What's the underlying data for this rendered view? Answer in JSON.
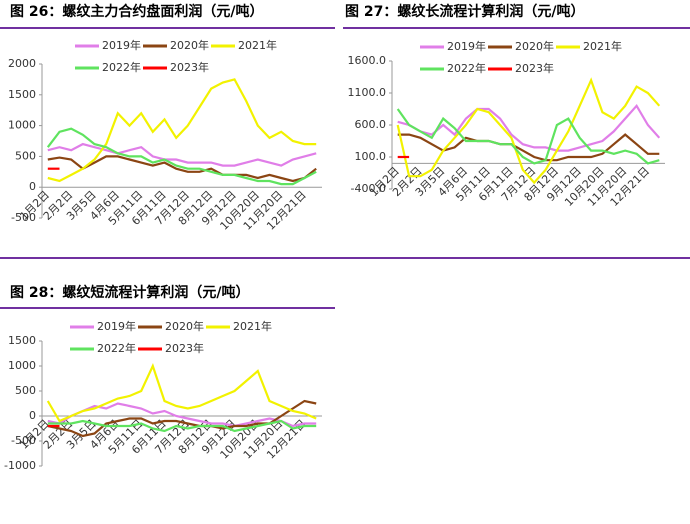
{
  "chart_data": [
    {
      "type": "line",
      "title": "图 26：螺纹主力合约盘面利润（元/吨）",
      "categories": [
        "1月2日",
        null,
        "2月2日",
        null,
        "3月5日",
        null,
        "4月6日",
        null,
        "5月11日",
        null,
        "6月11日",
        null,
        "7月12日",
        null,
        "8月12日",
        null,
        "9月12日",
        null,
        "10月20日",
        null,
        "11月20日",
        null,
        "12月21日",
        null
      ],
      "ylim": [
        -500,
        2000
      ],
      "yticks": [
        -500,
        0,
        500,
        1000,
        1500,
        2000
      ],
      "series": [
        {
          "name": "2019年",
          "color": "#e07ee8",
          "values": [
            600,
            650,
            600,
            700,
            650,
            600,
            550,
            600,
            650,
            500,
            450,
            450,
            400,
            400,
            400,
            350,
            350,
            400,
            450,
            400,
            350,
            450,
            500,
            550
          ]
        },
        {
          "name": "2020年",
          "color": "#8b4513",
          "values": [
            450,
            480,
            450,
            300,
            400,
            500,
            500,
            450,
            400,
            350,
            400,
            300,
            250,
            250,
            300,
            200,
            200,
            200,
            150,
            200,
            150,
            100,
            150,
            300
          ]
        },
        {
          "name": "2021年",
          "color": "#f2f200",
          "values": [
            150,
            100,
            200,
            300,
            450,
            700,
            1200,
            1000,
            1200,
            900,
            1100,
            800,
            1000,
            1300,
            1600,
            1700,
            1750,
            1400,
            1000,
            800,
            900,
            750,
            700,
            700
          ]
        },
        {
          "name": "2022年",
          "color": "#5fe35f",
          "values": [
            650,
            900,
            950,
            850,
            700,
            650,
            550,
            500,
            500,
            400,
            450,
            350,
            300,
            300,
            250,
            200,
            200,
            150,
            100,
            100,
            50,
            50,
            150,
            250
          ]
        },
        {
          "name": "2023年",
          "color": "#ff0000",
          "values": [
            300,
            300,
            null,
            null,
            null,
            null,
            null,
            null,
            null,
            null,
            null,
            null,
            null,
            null,
            null,
            null,
            null,
            null,
            null,
            null,
            null,
            null,
            null,
            null
          ]
        }
      ]
    },
    {
      "type": "line",
      "title": "图 27：螺纹长流程计算利润（元/吨）",
      "categories": [
        "1月2日",
        null,
        "2月2日",
        null,
        "3月5日",
        null,
        "4月6日",
        null,
        "5月11日",
        null,
        "6月11日",
        null,
        "7月12日",
        null,
        "8月12日",
        null,
        "9月12日",
        null,
        "10月20日",
        null,
        "11月20日",
        null,
        "12月21日",
        null
      ],
      "ylim": [
        -400,
        1600
      ],
      "yticks": [
        {
          "value": -400,
          "label": "-400.0"
        },
        {
          "value": 100,
          "label": "100.0"
        },
        {
          "value": 600,
          "label": "600.0"
        },
        {
          "value": 1100,
          "label": "1100.0"
        },
        {
          "value": 1600,
          "label": "1600.0"
        }
      ],
      "series": [
        {
          "name": "2019年",
          "color": "#e07ee8",
          "values": [
            650,
            600,
            500,
            450,
            600,
            450,
            700,
            850,
            850,
            700,
            450,
            300,
            250,
            250,
            200,
            200,
            250,
            300,
            350,
            500,
            700,
            900,
            600,
            400
          ]
        },
        {
          "name": "2020年",
          "color": "#8b4513",
          "values": [
            450,
            450,
            400,
            300,
            200,
            250,
            400,
            350,
            350,
            300,
            300,
            200,
            100,
            50,
            50,
            100,
            100,
            100,
            150,
            300,
            450,
            300,
            150,
            150
          ]
        },
        {
          "name": "2021年",
          "color": "#f2f200",
          "values": [
            600,
            -200,
            -200,
            -100,
            200,
            400,
            600,
            850,
            800,
            600,
            400,
            -100,
            -300,
            -100,
            200,
            500,
            900,
            1300,
            800,
            700,
            900,
            1200,
            1100,
            900
          ]
        },
        {
          "name": "2022年",
          "color": "#5fe35f",
          "values": [
            850,
            600,
            500,
            400,
            700,
            550,
            350,
            350,
            350,
            300,
            300,
            100,
            0,
            50,
            600,
            700,
            400,
            200,
            200,
            150,
            200,
            150,
            0,
            50
          ]
        },
        {
          "name": "2023年",
          "color": "#ff0000",
          "values": [
            100,
            100,
            null,
            null,
            null,
            null,
            null,
            null,
            null,
            null,
            null,
            null,
            null,
            null,
            null,
            null,
            null,
            null,
            null,
            null,
            null,
            null,
            null,
            null
          ]
        }
      ]
    },
    {
      "type": "line",
      "title": "图 28：螺纹短流程计算利润（元/吨）",
      "categories": [
        "1月2日",
        null,
        "2月2日",
        null,
        "3月5日",
        null,
        "4月6日",
        null,
        "5月11日",
        null,
        "6月11日",
        null,
        "7月12日",
        null,
        "8月12日",
        null,
        "9月12日",
        null,
        "10月20日",
        null,
        "11月20日",
        null,
        "12月21日",
        null
      ],
      "ylim": [
        -1000,
        1500
      ],
      "yticks": [
        -1000,
        -500,
        0,
        500,
        1000,
        1500
      ],
      "series": [
        {
          "name": "2019年",
          "color": "#e07ee8",
          "values": [
            -100,
            -150,
            0,
            100,
            200,
            150,
            250,
            200,
            150,
            50,
            100,
            0,
            -50,
            -100,
            -150,
            -150,
            -200,
            -150,
            -100,
            -50,
            -100,
            -200,
            -150,
            -150
          ]
        },
        {
          "name": "2020年",
          "color": "#8b4513",
          "values": [
            -200,
            -250,
            -300,
            -400,
            -350,
            -150,
            -100,
            -50,
            -50,
            -150,
            -100,
            -100,
            -150,
            -200,
            -200,
            -250,
            -200,
            -200,
            -150,
            -150,
            0,
            150,
            300,
            250
          ]
        },
        {
          "name": "2021年",
          "color": "#f2f200",
          "values": [
            300,
            -100,
            0,
            100,
            150,
            250,
            350,
            400,
            500,
            1000,
            300,
            200,
            150,
            200,
            300,
            400,
            500,
            700,
            900,
            300,
            200,
            100,
            50,
            -50
          ]
        },
        {
          "name": "2022年",
          "color": "#5fe35f",
          "values": [
            -150,
            -150,
            -150,
            -100,
            -150,
            -200,
            -200,
            -200,
            -150,
            -250,
            -300,
            -200,
            -250,
            -200,
            -200,
            -200,
            -300,
            -250,
            -200,
            -150,
            -100,
            -250,
            -200,
            -200
          ]
        },
        {
          "name": "2023年",
          "color": "#ff0000",
          "values": [
            -200,
            -200,
            null,
            null,
            null,
            null,
            null,
            null,
            null,
            null,
            null,
            null,
            null,
            null,
            null,
            null,
            null,
            null,
            null,
            null,
            null,
            null,
            null,
            null
          ]
        }
      ]
    }
  ]
}
